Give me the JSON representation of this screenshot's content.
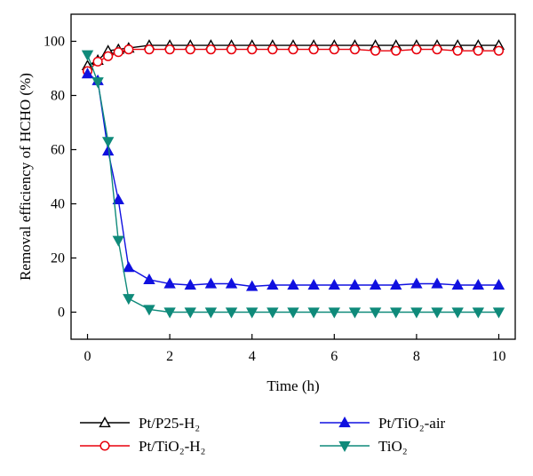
{
  "chart_data": {
    "type": "line",
    "xlabel": "Time (h)",
    "ylabel": "Removal efficiency of HCHO (%)",
    "xlim": [
      -0.4,
      10.4
    ],
    "ylim": [
      -10,
      110
    ],
    "xticks": [
      0,
      2,
      4,
      6,
      8,
      10
    ],
    "yticks": [
      0,
      20,
      40,
      60,
      80,
      100
    ],
    "grid": false,
    "legend_position": "bottom",
    "series": [
      {
        "name": "Pt/P25-H₂",
        "color": "#000000",
        "marker": "triangle-up-open",
        "x": [
          0,
          0.25,
          0.5,
          0.75,
          1,
          1.5,
          2,
          2.5,
          3,
          3.5,
          4,
          4.5,
          5,
          5.5,
          6,
          6.5,
          7,
          7.5,
          8,
          8.5,
          9,
          9.5,
          10
        ],
        "y": [
          91,
          93,
          96.5,
          97,
          97.5,
          98.5,
          98.5,
          98.5,
          98.5,
          98.5,
          98.5,
          98.5,
          98.5,
          98.5,
          98.5,
          98.5,
          98.5,
          98.5,
          98.5,
          98.5,
          98.5,
          98.5,
          98.5
        ]
      },
      {
        "name": "Pt/TiO₂-H₂",
        "color": "#e8000b",
        "marker": "circle-open",
        "x": [
          0,
          0.25,
          0.5,
          0.75,
          1,
          1.5,
          2,
          2.5,
          3,
          3.5,
          4,
          4.5,
          5,
          5.5,
          6,
          6.5,
          7,
          7.5,
          8,
          8.5,
          9,
          9.5,
          10
        ],
        "y": [
          89,
          92.5,
          94.5,
          96,
          97,
          97,
          97,
          97,
          97,
          97,
          97,
          97,
          97,
          97,
          97,
          97,
          96.5,
          96.5,
          97,
          97,
          96.5,
          96.5,
          96.5
        ]
      },
      {
        "name": "Pt/TiO₂-air",
        "color": "#1010e0",
        "marker": "triangle-up-filled",
        "x": [
          0,
          0.25,
          0.5,
          0.75,
          1,
          1.5,
          2,
          2.5,
          3,
          3.5,
          4,
          4.5,
          5,
          5.5,
          6,
          6.5,
          7,
          7.5,
          8,
          8.5,
          9,
          9.5,
          10
        ],
        "y": [
          88,
          85.5,
          59.5,
          41.5,
          16.5,
          12,
          10.5,
          10,
          10.5,
          10.5,
          9.5,
          10,
          10,
          10,
          10,
          10,
          10,
          10,
          10.5,
          10.5,
          10,
          10,
          10
        ]
      },
      {
        "name": "TiO₂",
        "color": "#0f8a7a",
        "marker": "triangle-down-filled",
        "x": [
          0,
          0.25,
          0.5,
          0.75,
          1,
          1.5,
          2,
          2.5,
          3,
          3.5,
          4,
          4.5,
          5,
          5.5,
          6,
          6.5,
          7,
          7.5,
          8,
          8.5,
          9,
          9.5,
          10
        ],
        "y": [
          95,
          85,
          63,
          26.5,
          5,
          1,
          0,
          0,
          0,
          0,
          0,
          0,
          0,
          0,
          0,
          0,
          0,
          0,
          0,
          0,
          0,
          0,
          0
        ]
      }
    ]
  }
}
